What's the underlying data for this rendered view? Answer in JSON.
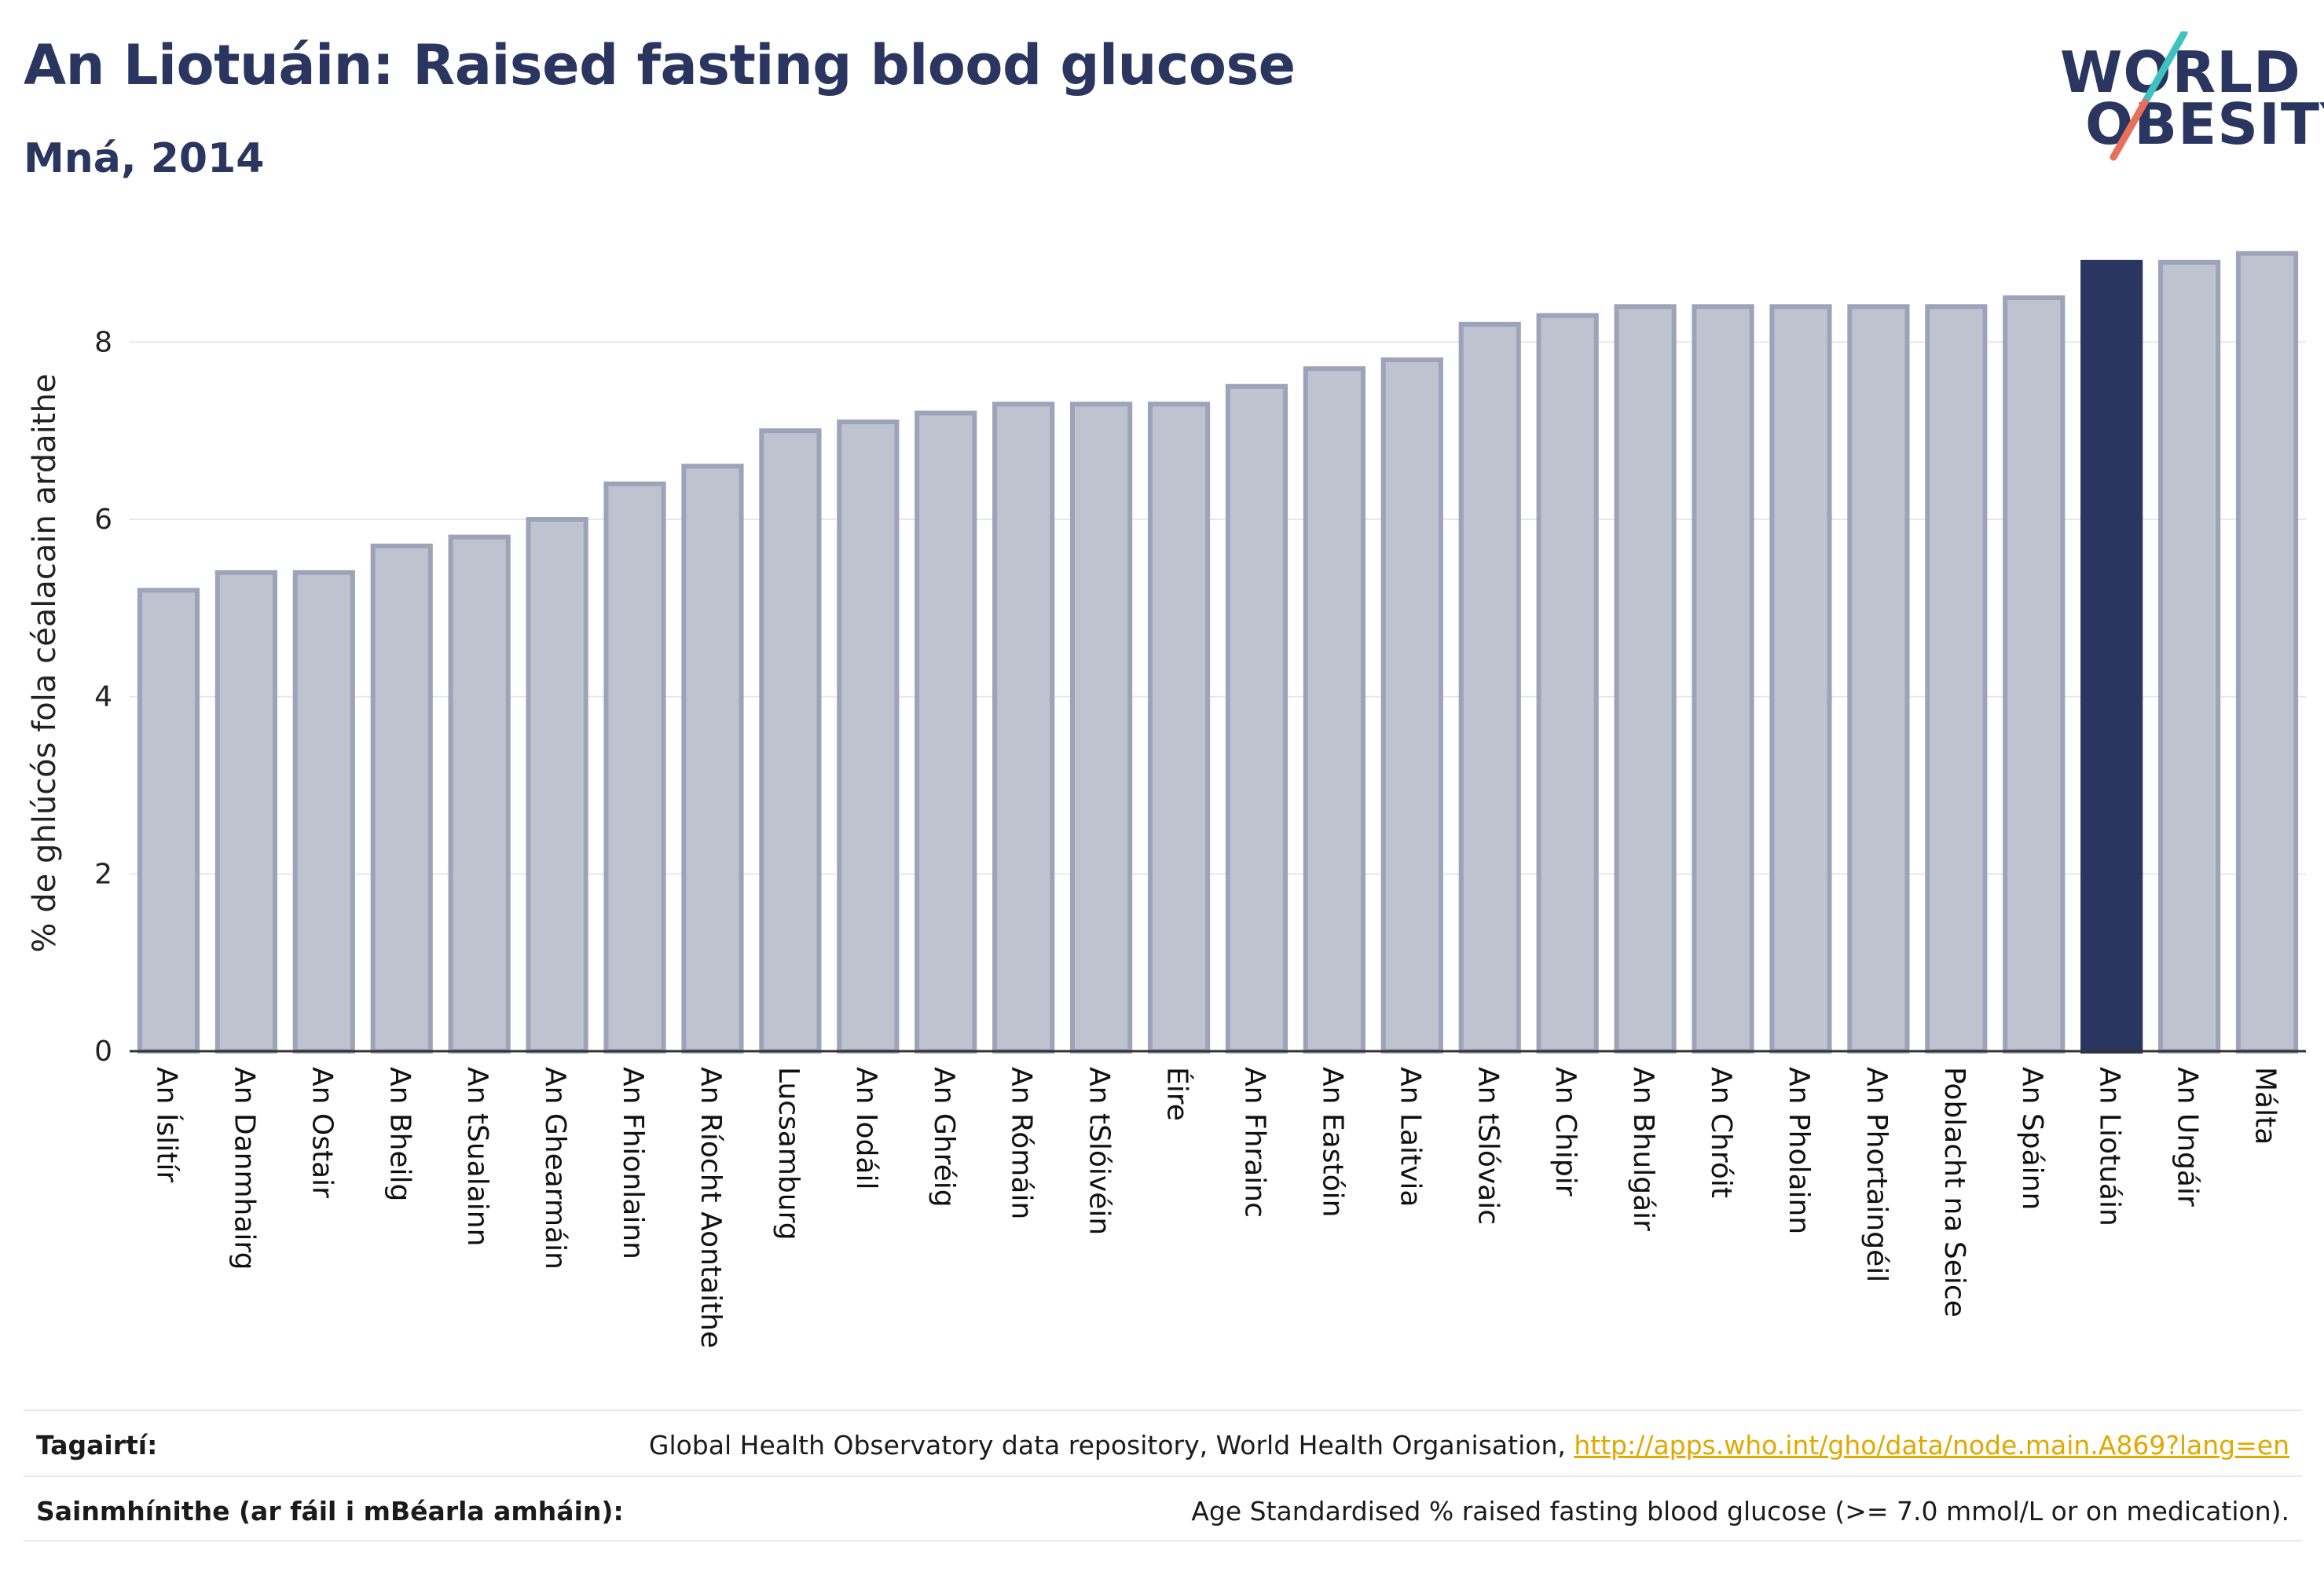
{
  "header": {
    "title": "An Liotuáin: Raised fasting blood glucose",
    "subtitle": "Mná, 2014"
  },
  "logo": {
    "line1": "WORLD",
    "line2": "OBESITY",
    "colors": {
      "text": "#2a3560",
      "slash_top": "#3cc3c0",
      "slash_bottom": "#e8705a"
    }
  },
  "chart_data": {
    "type": "bar",
    "title": "An Liotuáin: Raised fasting blood glucose",
    "subtitle": "Mná, 2014",
    "xlabel": "",
    "ylabel": "% de ghlúcós fola céalacain ardaithe",
    "ylim": [
      0,
      9.2
    ],
    "yticks": [
      0,
      2,
      4,
      6,
      8
    ],
    "grid": true,
    "highlight": "An Liotuáin",
    "colors": {
      "bar": "#bfc3d0",
      "bar_border": "#9da3b8",
      "highlight": "#2a3560",
      "grid": "#e6e8ee",
      "axis": "#333333"
    },
    "categories": [
      "An Íslitír",
      "An Danmhairg",
      "An Ostair",
      "An Bheilg",
      "An tSualainn",
      "An Ghearmáin",
      "An Fhionlainn",
      "An Ríocht Aontaithe",
      "Lucsamburg",
      "An Iodáil",
      "An Ghréig",
      "An Rómáin",
      "An tSlóivéin",
      "Éire",
      "An Fhrainc",
      "An Eastóin",
      "An Laitvia",
      "An tSlóvaic",
      "An Chipir",
      "An Bhulgáir",
      "An Chróit",
      "An Pholainn",
      "An Phortaingéil",
      "Poblacht na Seice",
      "An Spáinn",
      "An Liotuáin",
      "An Ungáir",
      "Málta"
    ],
    "values": [
      5.2,
      5.4,
      5.4,
      5.7,
      5.8,
      6.0,
      6.4,
      6.6,
      7.0,
      7.1,
      7.2,
      7.3,
      7.3,
      7.3,
      7.5,
      7.7,
      7.8,
      8.2,
      8.3,
      8.4,
      8.4,
      8.4,
      8.4,
      8.4,
      8.5,
      8.9,
      8.9,
      9.0
    ]
  },
  "footer": {
    "references_label": "Tagairtí:",
    "references_text": "Global Health Observatory data repository, World Health Organisation, ",
    "references_link": "http://apps.who.int/gho/data/node.main.A869?lang=en",
    "definitions_label": "Sainmhínithe (ar fáil i mBéarla amháin):",
    "definitions_text": "Age Standardised % raised fasting blood glucose (>= 7.0 mmol/L or on medication)."
  }
}
